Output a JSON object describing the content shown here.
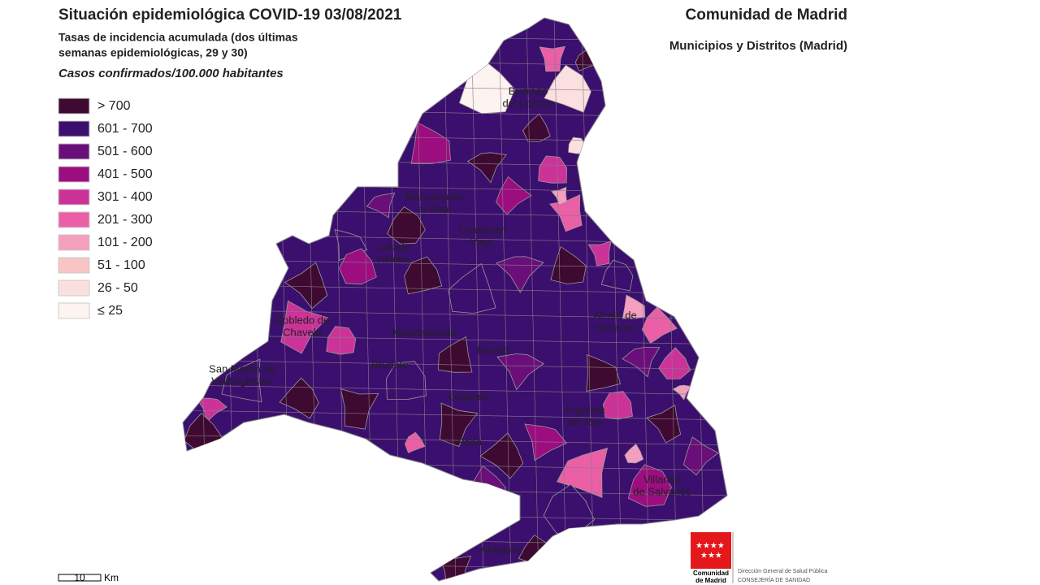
{
  "header": {
    "title": "Situación epidemiológica COVID-19  03/08/2021",
    "subtitle_lines": [
      "Tasas de incidencia acumulada (dos últimas",
      "semanas epidemiológicas, 29 y 30)"
    ],
    "units": "Casos confirmados/100.000 habitantes",
    "region": "Comunidad de Madrid",
    "scope": "Municipios y Distritos (Madrid)"
  },
  "legend": {
    "items": [
      {
        "label": "> 700",
        "color": "#3f0a31"
      },
      {
        "label": "601 - 700",
        "color": "#3b0f6e"
      },
      {
        "label": "501 - 600",
        "color": "#6a0f7a"
      },
      {
        "label": "401 - 500",
        "color": "#9c0d80"
      },
      {
        "label": "301 - 400",
        "color": "#cc3399"
      },
      {
        "label": "201 - 300",
        "color": "#ea5fa5"
      },
      {
        "label": "101 - 200",
        "color": "#f59fbe"
      },
      {
        "label": "51 - 100",
        "color": "#f8c4c4"
      },
      {
        "label": "26 - 50",
        "color": "#fbe0e0"
      },
      {
        "label": "≤ 25",
        "color": "#fdf3f1"
      }
    ]
  },
  "places": [
    {
      "lines": [
        "Buitrago",
        "del Lozoya"
      ]
    },
    {
      "lines": [
        "Manzanares",
        "el Real"
      ]
    },
    {
      "lines": [
        "Colmenar",
        "Viejo"
      ]
    },
    {
      "lines": [
        "Collado",
        "Villalba"
      ]
    },
    {
      "lines": [
        "Robledo de",
        "Chavela"
      ]
    },
    {
      "lines": [
        "San Martín de",
        "Valdeiglesias"
      ]
    },
    {
      "lines": [
        "Majadahonda"
      ]
    },
    {
      "lines": [
        "Madrid"
      ]
    },
    {
      "lines": [
        "Brunete"
      ]
    },
    {
      "lines": [
        "Alcalá de",
        "Henares"
      ]
    },
    {
      "lines": [
        "Leganés"
      ]
    },
    {
      "lines": [
        "Arganda",
        "del Rey"
      ]
    },
    {
      "lines": [
        "Parla"
      ]
    },
    {
      "lines": [
        "Villarejo",
        "de Salvanés"
      ]
    },
    {
      "lines": [
        "Aranjuez"
      ]
    }
  ],
  "scale": {
    "value": 10,
    "unit": "Km"
  },
  "logo": {
    "name_lines": [
      "Comunidad",
      "de Madrid"
    ],
    "org_lines": [
      "Dirección General de Salud Pública",
      "CONSEJERÍA DE SANIDAD"
    ]
  }
}
